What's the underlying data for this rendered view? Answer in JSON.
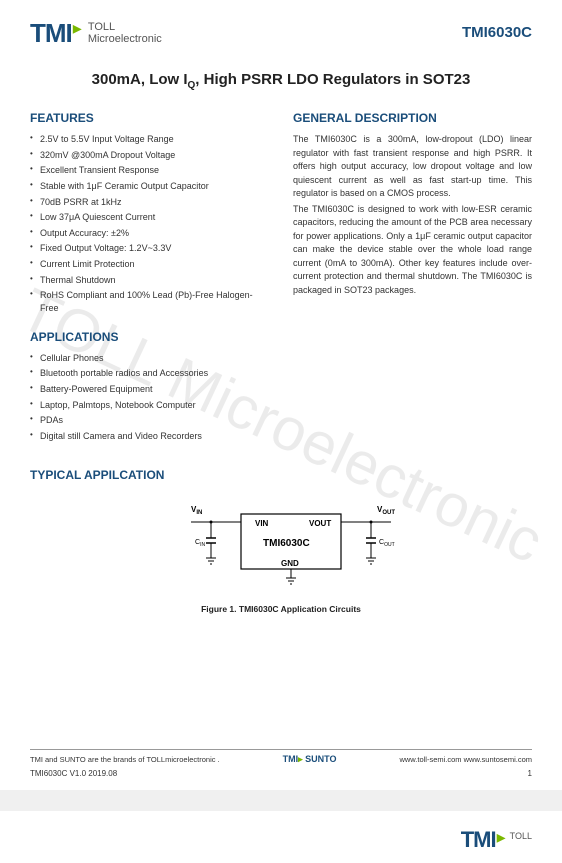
{
  "logo": {
    "main": "TMI",
    "sub1": "TOLL",
    "sub2": "Microelectronic"
  },
  "partNumber": "TMI6030C",
  "title_pre": "300mA, Low I",
  "title_sub": "Q",
  "title_post": ", High PSRR LDO Regulators in SOT23",
  "featuresTitle": "FEATURES",
  "features": [
    "2.5V to 5.5V Input Voltage Range",
    "320mV @300mA Dropout Voltage",
    "Excellent Transient Response",
    "Stable with 1μF Ceramic Output Capacitor",
    "70dB PSRR at 1kHz",
    "Low 37μA Quiescent Current",
    "Output Accuracy: ±2%",
    "Fixed Output Voltage: 1.2V~3.3V",
    "Current Limit Protection",
    "Thermal Shutdown",
    "RoHS Compliant and 100% Lead (Pb)-Free Halogen-Free"
  ],
  "descTitle": "GENERAL DESCRIPTION",
  "desc1": "The TMI6030C is a 300mA, low-dropout (LDO) linear regulator with fast transient response and high PSRR. It offers high output accuracy, low dropout voltage and low quiescent current as well as fast start-up time. This regulator is based on a CMOS process.",
  "desc2": "The TMI6030C is designed to work with low-ESR ceramic capacitors, reducing the amount of the PCB area necessary for power applications. Only a 1μF ceramic output capacitor can make the device stable over the whole load range current (0mA to 300mA). Other key features include over-current protection and thermal shutdown. The TMI6030C is packaged in SOT23 packages.",
  "appsTitle": "APPLICATIONS",
  "apps": [
    "Cellular Phones",
    "Bluetooth portable radios and Accessories",
    "Battery-Powered Equipment",
    "Laptop, Palmtops, Notebook Computer",
    "PDAs",
    "Digital still Camera and Video Recorders"
  ],
  "typicalTitle": "TYPICAL APPILCATION",
  "circuit": {
    "vin_label": "VIN",
    "vout_label": "VOUT",
    "vin_ext": "V",
    "vin_ext_sub": "IN",
    "vout_ext": "V",
    "vout_ext_sub": "OUT",
    "chip": "TMI6030C",
    "gnd": "GND",
    "cin": "C",
    "cin_sub": "IN",
    "cout": "C",
    "cout_sub": "OUT"
  },
  "figureCaption": "Figure 1. TMI6030C Application Circuits",
  "footer": {
    "brands": "TMI and SUNTO are the brands of TOLLmicroelectronic .",
    "brandLogo1": "TMI",
    "brandLogo2": "SUNTO",
    "urls": "www.toll-semi.com www.suntosemi.com",
    "version": "TMI6030C V1.0   2019.08",
    "page": "1"
  },
  "watermark": "TOLL Microelectronic"
}
